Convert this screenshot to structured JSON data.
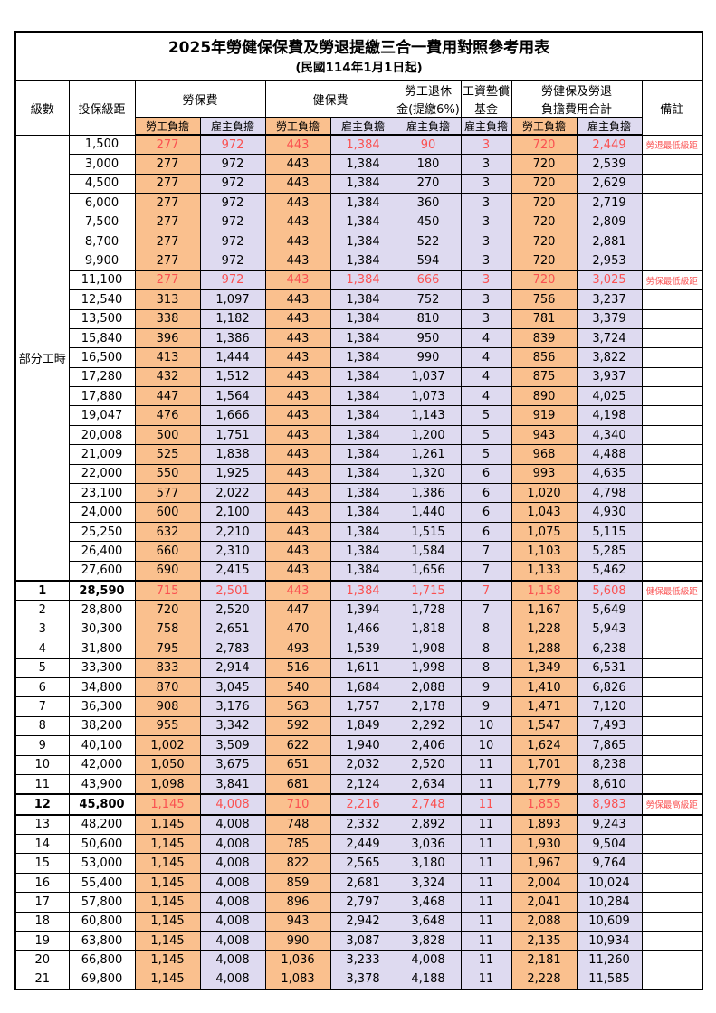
{
  "table": {
    "title": "2025年勞健保保費及勞退提繳三合一費用對照參考用表",
    "subtitle": "(民國114年1月1日起)",
    "colors": {
      "employee_bg": "#FAC08E",
      "employer_bg": "#DEDAF0",
      "highlight_text": "#FA5151",
      "border": "#000000"
    },
    "header": {
      "level": "級數",
      "bracket": "投保級距",
      "labor": "勞保費",
      "health": "健保費",
      "pension_line1": "勞工退休",
      "pension_line2": "金(提繳6%)",
      "wage_line1": "工資墊償",
      "wage_line2": "基金",
      "total_line1": "勞健保及勞退",
      "total_line2": "負擔費用合計",
      "note": "備註",
      "employee": "勞工負擔",
      "employer": "雇主負擔"
    },
    "part_time_label": "部分工時",
    "rows": [
      {
        "level": "",
        "bracket": "1,500",
        "labor_emp": "277",
        "labor_er": "972",
        "health_emp": "443",
        "health_er": "1,384",
        "pension": "90",
        "wage_fund": "3",
        "total_emp": "720",
        "total_er": "2,449",
        "note": "勞退最低級距",
        "highlight": true
      },
      {
        "level": "",
        "bracket": "3,000",
        "labor_emp": "277",
        "labor_er": "972",
        "health_emp": "443",
        "health_er": "1,384",
        "pension": "180",
        "wage_fund": "3",
        "total_emp": "720",
        "total_er": "2,539",
        "note": ""
      },
      {
        "level": "",
        "bracket": "4,500",
        "labor_emp": "277",
        "labor_er": "972",
        "health_emp": "443",
        "health_er": "1,384",
        "pension": "270",
        "wage_fund": "3",
        "total_emp": "720",
        "total_er": "2,629",
        "note": ""
      },
      {
        "level": "",
        "bracket": "6,000",
        "labor_emp": "277",
        "labor_er": "972",
        "health_emp": "443",
        "health_er": "1,384",
        "pension": "360",
        "wage_fund": "3",
        "total_emp": "720",
        "total_er": "2,719",
        "note": ""
      },
      {
        "level": "",
        "bracket": "7,500",
        "labor_emp": "277",
        "labor_er": "972",
        "health_emp": "443",
        "health_er": "1,384",
        "pension": "450",
        "wage_fund": "3",
        "total_emp": "720",
        "total_er": "2,809",
        "note": ""
      },
      {
        "level": "",
        "bracket": "8,700",
        "labor_emp": "277",
        "labor_er": "972",
        "health_emp": "443",
        "health_er": "1,384",
        "pension": "522",
        "wage_fund": "3",
        "total_emp": "720",
        "total_er": "2,881",
        "note": ""
      },
      {
        "level": "",
        "bracket": "9,900",
        "labor_emp": "277",
        "labor_er": "972",
        "health_emp": "443",
        "health_er": "1,384",
        "pension": "594",
        "wage_fund": "3",
        "total_emp": "720",
        "total_er": "2,953",
        "note": ""
      },
      {
        "level": "",
        "bracket": "11,100",
        "labor_emp": "277",
        "labor_er": "972",
        "health_emp": "443",
        "health_er": "1,384",
        "pension": "666",
        "wage_fund": "3",
        "total_emp": "720",
        "total_er": "3,025",
        "note": "勞保最低級距",
        "highlight": true
      },
      {
        "level": "",
        "bracket": "12,540",
        "labor_emp": "313",
        "labor_er": "1,097",
        "health_emp": "443",
        "health_er": "1,384",
        "pension": "752",
        "wage_fund": "3",
        "total_emp": "756",
        "total_er": "3,237",
        "note": ""
      },
      {
        "level": "",
        "bracket": "13,500",
        "labor_emp": "338",
        "labor_er": "1,182",
        "health_emp": "443",
        "health_er": "1,384",
        "pension": "810",
        "wage_fund": "3",
        "total_emp": "781",
        "total_er": "3,379",
        "note": ""
      },
      {
        "level": "",
        "bracket": "15,840",
        "labor_emp": "396",
        "labor_er": "1,386",
        "health_emp": "443",
        "health_er": "1,384",
        "pension": "950",
        "wage_fund": "4",
        "total_emp": "839",
        "total_er": "3,724",
        "note": ""
      },
      {
        "level": "",
        "bracket": "16,500",
        "labor_emp": "413",
        "labor_er": "1,444",
        "health_emp": "443",
        "health_er": "1,384",
        "pension": "990",
        "wage_fund": "4",
        "total_emp": "856",
        "total_er": "3,822",
        "note": ""
      },
      {
        "level": "",
        "bracket": "17,280",
        "labor_emp": "432",
        "labor_er": "1,512",
        "health_emp": "443",
        "health_er": "1,384",
        "pension": "1,037",
        "wage_fund": "4",
        "total_emp": "875",
        "total_er": "3,937",
        "note": ""
      },
      {
        "level": "",
        "bracket": "17,880",
        "labor_emp": "447",
        "labor_er": "1,564",
        "health_emp": "443",
        "health_er": "1,384",
        "pension": "1,073",
        "wage_fund": "4",
        "total_emp": "890",
        "total_er": "4,025",
        "note": ""
      },
      {
        "level": "",
        "bracket": "19,047",
        "labor_emp": "476",
        "labor_er": "1,666",
        "health_emp": "443",
        "health_er": "1,384",
        "pension": "1,143",
        "wage_fund": "5",
        "total_emp": "919",
        "total_er": "4,198",
        "note": ""
      },
      {
        "level": "",
        "bracket": "20,008",
        "labor_emp": "500",
        "labor_er": "1,751",
        "health_emp": "443",
        "health_er": "1,384",
        "pension": "1,200",
        "wage_fund": "5",
        "total_emp": "943",
        "total_er": "4,340",
        "note": ""
      },
      {
        "level": "",
        "bracket": "21,009",
        "labor_emp": "525",
        "labor_er": "1,838",
        "health_emp": "443",
        "health_er": "1,384",
        "pension": "1,261",
        "wage_fund": "5",
        "total_emp": "968",
        "total_er": "4,488",
        "note": ""
      },
      {
        "level": "",
        "bracket": "22,000",
        "labor_emp": "550",
        "labor_er": "1,925",
        "health_emp": "443",
        "health_er": "1,384",
        "pension": "1,320",
        "wage_fund": "6",
        "total_emp": "993",
        "total_er": "4,635",
        "note": ""
      },
      {
        "level": "",
        "bracket": "23,100",
        "labor_emp": "577",
        "labor_er": "2,022",
        "health_emp": "443",
        "health_er": "1,384",
        "pension": "1,386",
        "wage_fund": "6",
        "total_emp": "1,020",
        "total_er": "4,798",
        "note": ""
      },
      {
        "level": "",
        "bracket": "24,000",
        "labor_emp": "600",
        "labor_er": "2,100",
        "health_emp": "443",
        "health_er": "1,384",
        "pension": "1,440",
        "wage_fund": "6",
        "total_emp": "1,043",
        "total_er": "4,930",
        "note": ""
      },
      {
        "level": "",
        "bracket": "25,250",
        "labor_emp": "632",
        "labor_er": "2,210",
        "health_emp": "443",
        "health_er": "1,384",
        "pension": "1,515",
        "wage_fund": "6",
        "total_emp": "1,075",
        "total_er": "5,115",
        "note": ""
      },
      {
        "level": "",
        "bracket": "26,400",
        "labor_emp": "660",
        "labor_er": "2,310",
        "health_emp": "443",
        "health_er": "1,384",
        "pension": "1,584",
        "wage_fund": "7",
        "total_emp": "1,103",
        "total_er": "5,285",
        "note": ""
      },
      {
        "level": "",
        "bracket": "27,600",
        "labor_emp": "690",
        "labor_er": "2,415",
        "health_emp": "443",
        "health_er": "1,384",
        "pension": "1,656",
        "wage_fund": "7",
        "total_emp": "1,133",
        "total_er": "5,462",
        "note": ""
      },
      {
        "level": "1",
        "bracket": "28,590",
        "labor_emp": "715",
        "labor_er": "2,501",
        "health_emp": "443",
        "health_er": "1,384",
        "pension": "1,715",
        "wage_fund": "7",
        "total_emp": "1,158",
        "total_er": "5,608",
        "note": "健保最低級距",
        "highlight": true,
        "bold": true,
        "thick_top": true
      },
      {
        "level": "2",
        "bracket": "28,800",
        "labor_emp": "720",
        "labor_er": "2,520",
        "health_emp": "447",
        "health_er": "1,394",
        "pension": "1,728",
        "wage_fund": "7",
        "total_emp": "1,167",
        "total_er": "5,649",
        "note": ""
      },
      {
        "level": "3",
        "bracket": "30,300",
        "labor_emp": "758",
        "labor_er": "2,651",
        "health_emp": "470",
        "health_er": "1,466",
        "pension": "1,818",
        "wage_fund": "8",
        "total_emp": "1,228",
        "total_er": "5,943",
        "note": ""
      },
      {
        "level": "4",
        "bracket": "31,800",
        "labor_emp": "795",
        "labor_er": "2,783",
        "health_emp": "493",
        "health_er": "1,539",
        "pension": "1,908",
        "wage_fund": "8",
        "total_emp": "1,288",
        "total_er": "6,238",
        "note": ""
      },
      {
        "level": "5",
        "bracket": "33,300",
        "labor_emp": "833",
        "labor_er": "2,914",
        "health_emp": "516",
        "health_er": "1,611",
        "pension": "1,998",
        "wage_fund": "8",
        "total_emp": "1,349",
        "total_er": "6,531",
        "note": ""
      },
      {
        "level": "6",
        "bracket": "34,800",
        "labor_emp": "870",
        "labor_er": "3,045",
        "health_emp": "540",
        "health_er": "1,684",
        "pension": "2,088",
        "wage_fund": "9",
        "total_emp": "1,410",
        "total_er": "6,826",
        "note": ""
      },
      {
        "level": "7",
        "bracket": "36,300",
        "labor_emp": "908",
        "labor_er": "3,176",
        "health_emp": "563",
        "health_er": "1,757",
        "pension": "2,178",
        "wage_fund": "9",
        "total_emp": "1,471",
        "total_er": "7,120",
        "note": ""
      },
      {
        "level": "8",
        "bracket": "38,200",
        "labor_emp": "955",
        "labor_er": "3,342",
        "health_emp": "592",
        "health_er": "1,849",
        "pension": "2,292",
        "wage_fund": "10",
        "total_emp": "1,547",
        "total_er": "7,493",
        "note": ""
      },
      {
        "level": "9",
        "bracket": "40,100",
        "labor_emp": "1,002",
        "labor_er": "3,509",
        "health_emp": "622",
        "health_er": "1,940",
        "pension": "2,406",
        "wage_fund": "10",
        "total_emp": "1,624",
        "total_er": "7,865",
        "note": ""
      },
      {
        "level": "10",
        "bracket": "42,000",
        "labor_emp": "1,050",
        "labor_er": "3,675",
        "health_emp": "651",
        "health_er": "2,032",
        "pension": "2,520",
        "wage_fund": "11",
        "total_emp": "1,701",
        "total_er": "8,238",
        "note": ""
      },
      {
        "level": "11",
        "bracket": "43,900",
        "labor_emp": "1,098",
        "labor_er": "3,841",
        "health_emp": "681",
        "health_er": "2,124",
        "pension": "2,634",
        "wage_fund": "11",
        "total_emp": "1,779",
        "total_er": "8,610",
        "note": ""
      },
      {
        "level": "12",
        "bracket": "45,800",
        "labor_emp": "1,145",
        "labor_er": "4,008",
        "health_emp": "710",
        "health_er": "2,216",
        "pension": "2,748",
        "wage_fund": "11",
        "total_emp": "1,855",
        "total_er": "8,983",
        "note": "勞保最高級距",
        "highlight": true,
        "bold": true,
        "thick_top": true,
        "thick_bottom": true
      },
      {
        "level": "13",
        "bracket": "48,200",
        "labor_emp": "1,145",
        "labor_er": "4,008",
        "health_emp": "748",
        "health_er": "2,332",
        "pension": "2,892",
        "wage_fund": "11",
        "total_emp": "1,893",
        "total_er": "9,243",
        "note": ""
      },
      {
        "level": "14",
        "bracket": "50,600",
        "labor_emp": "1,145",
        "labor_er": "4,008",
        "health_emp": "785",
        "health_er": "2,449",
        "pension": "3,036",
        "wage_fund": "11",
        "total_emp": "1,930",
        "total_er": "9,504",
        "note": ""
      },
      {
        "level": "15",
        "bracket": "53,000",
        "labor_emp": "1,145",
        "labor_er": "4,008",
        "health_emp": "822",
        "health_er": "2,565",
        "pension": "3,180",
        "wage_fund": "11",
        "total_emp": "1,967",
        "total_er": "9,764",
        "note": ""
      },
      {
        "level": "16",
        "bracket": "55,400",
        "labor_emp": "1,145",
        "labor_er": "4,008",
        "health_emp": "859",
        "health_er": "2,681",
        "pension": "3,324",
        "wage_fund": "11",
        "total_emp": "2,004",
        "total_er": "10,024",
        "note": ""
      },
      {
        "level": "17",
        "bracket": "57,800",
        "labor_emp": "1,145",
        "labor_er": "4,008",
        "health_emp": "896",
        "health_er": "2,797",
        "pension": "3,468",
        "wage_fund": "11",
        "total_emp": "2,041",
        "total_er": "10,284",
        "note": ""
      },
      {
        "level": "18",
        "bracket": "60,800",
        "labor_emp": "1,145",
        "labor_er": "4,008",
        "health_emp": "943",
        "health_er": "2,942",
        "pension": "3,648",
        "wage_fund": "11",
        "total_emp": "2,088",
        "total_er": "10,609",
        "note": ""
      },
      {
        "level": "19",
        "bracket": "63,800",
        "labor_emp": "1,145",
        "labor_er": "4,008",
        "health_emp": "990",
        "health_er": "3,087",
        "pension": "3,828",
        "wage_fund": "11",
        "total_emp": "2,135",
        "total_er": "10,934",
        "note": ""
      },
      {
        "level": "20",
        "bracket": "66,800",
        "labor_emp": "1,145",
        "labor_er": "4,008",
        "health_emp": "1,036",
        "health_er": "3,233",
        "pension": "4,008",
        "wage_fund": "11",
        "total_emp": "2,181",
        "total_er": "11,260",
        "note": ""
      },
      {
        "level": "21",
        "bracket": "69,800",
        "labor_emp": "1,145",
        "labor_er": "4,008",
        "health_emp": "1,083",
        "health_er": "3,378",
        "pension": "4,188",
        "wage_fund": "11",
        "total_emp": "2,228",
        "total_er": "11,585",
        "note": ""
      }
    ]
  }
}
